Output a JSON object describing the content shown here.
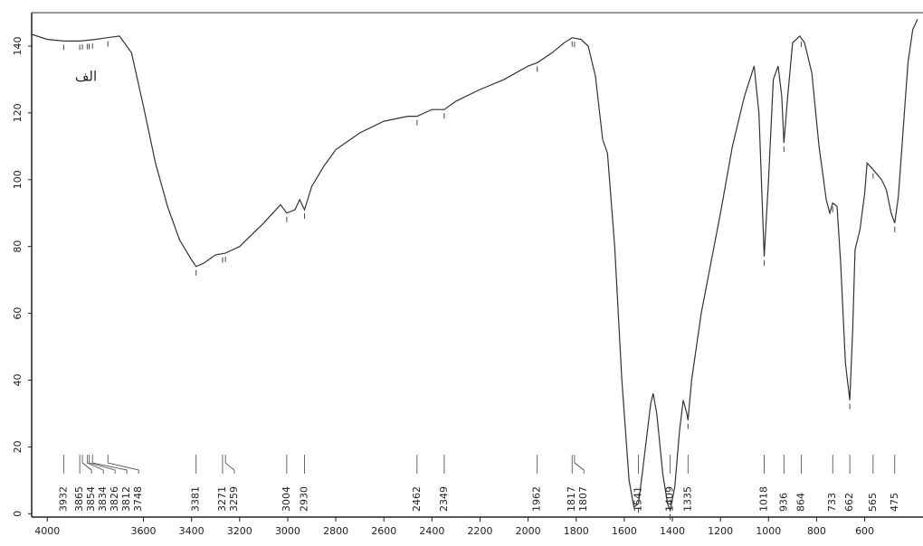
{
  "chart_data": {
    "type": "line",
    "label": "الف",
    "color": "#333333",
    "xlim": [
      4065,
      365
    ],
    "ylim": [
      -1,
      150
    ],
    "xticks": [
      4000,
      3600,
      3400,
      3200,
      3000,
      2800,
      2600,
      2400,
      2200,
      2000,
      1800,
      1600,
      1400,
      1200,
      1000,
      800,
      600
    ],
    "yticks": [
      0,
      20,
      40,
      60,
      80,
      100,
      120,
      140
    ],
    "x": [
      4065,
      4000,
      3932,
      3865,
      3800,
      3750,
      3700,
      3650,
      3600,
      3550,
      3500,
      3450,
      3400,
      3381,
      3350,
      3300,
      3260,
      3200,
      3100,
      3030,
      3004,
      2970,
      2950,
      2930,
      2900,
      2850,
      2800,
      2700,
      2600,
      2500,
      2462,
      2400,
      2349,
      2300,
      2200,
      2100,
      2000,
      1962,
      1900,
      1850,
      1817,
      1780,
      1750,
      1720,
      1690,
      1670,
      1640,
      1610,
      1580,
      1560,
      1541,
      1520,
      1490,
      1480,
      1465,
      1440,
      1420,
      1409,
      1390,
      1370,
      1355,
      1340,
      1335,
      1320,
      1280,
      1200,
      1150,
      1100,
      1060,
      1040,
      1018,
      1000,
      980,
      960,
      945,
      936,
      920,
      900,
      870,
      850,
      820,
      790,
      760,
      745,
      733,
      715,
      700,
      680,
      662,
      650,
      640,
      620,
      600,
      590,
      565,
      530,
      510,
      490,
      475,
      460,
      440,
      420,
      400,
      380
    ],
    "values": [
      143.5,
      142,
      141.5,
      141.5,
      142,
      142.5,
      143,
      138,
      122,
      105,
      92,
      82,
      76,
      74,
      75,
      77.5,
      78,
      80,
      87,
      92.5,
      90,
      91,
      94,
      91,
      98,
      104,
      109,
      114,
      117.5,
      119,
      119,
      121,
      121,
      123.5,
      127,
      130,
      134,
      135,
      138,
      141,
      142.5,
      142,
      140,
      131,
      112,
      108,
      80,
      40,
      10,
      2,
      3,
      15,
      33,
      36,
      30,
      12,
      3,
      1,
      8,
      25,
      34,
      30,
      28,
      40,
      60,
      90,
      110,
      125,
      134,
      120,
      77,
      100,
      130,
      134,
      125,
      111,
      125,
      141,
      143,
      141,
      132,
      110,
      94,
      90,
      93,
      92,
      75,
      45,
      34,
      55,
      79,
      85,
      96,
      105,
      103,
      100,
      97,
      90,
      87,
      95,
      115,
      135,
      145,
      148
    ],
    "peaks": [
      3932,
      3865,
      3854,
      3834,
      3826,
      3812,
      3748,
      3381,
      3271,
      3259,
      3004,
      2930,
      2462,
      2349,
      1962,
      1817,
      1807,
      1541,
      1409,
      1335,
      1018,
      936,
      864,
      733,
      662,
      565,
      475
    ]
  }
}
